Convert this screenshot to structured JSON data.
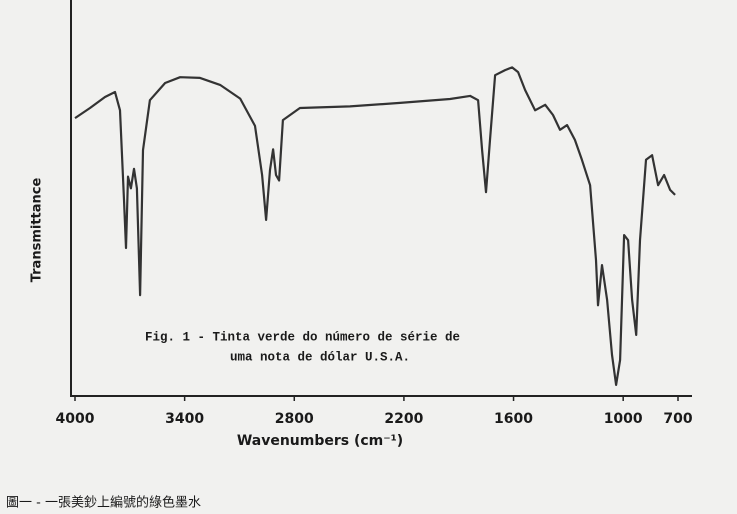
{
  "chart_data": {
    "type": "line",
    "annotation": [
      "Fig. 1 - Tinta verde do número de série de",
      "uma nota de dólar U.S.A."
    ],
    "x_label": "Wavenumbers (cm⁻¹)",
    "y_label": "Transmittance",
    "caption": "圖一 - 一張美鈔上編號的綠色墨水",
    "xlim": [
      4000,
      700
    ],
    "xticks": [
      4000,
      3400,
      2800,
      2200,
      1600,
      1000,
      700
    ],
    "ylim": [
      0,
      100
    ],
    "series": [
      {
        "color": "#333333",
        "x": [
          4000,
          3918,
          3836,
          3781,
          3754,
          3732,
          3721,
          3710,
          3694,
          3677,
          3661,
          3644,
          3628,
          3590,
          3507,
          3425,
          3316,
          3206,
          3096,
          3015,
          2976,
          2954,
          2933,
          2916,
          2900,
          2883,
          2862,
          2769,
          2495,
          2221,
          1948,
          1838,
          1794,
          1772,
          1751,
          1729,
          1701,
          1646,
          1608,
          1575,
          1537,
          1482,
          1427,
          1384,
          1346,
          1307,
          1264,
          1226,
          1181,
          1149,
          1138,
          1116,
          1088,
          1061,
          1039,
          1017,
          995,
          973,
          951,
          929,
          908,
          875,
          842,
          809,
          776,
          743,
          716
        ],
        "values": [
          71,
          73.6,
          76.4,
          77.7,
          73,
          50,
          37.7,
          56,
          53,
          58,
          53,
          25.6,
          62.8,
          75.6,
          80,
          81.5,
          81.3,
          79.5,
          76,
          69,
          56.4,
          44.9,
          57.7,
          63,
          56.4,
          55,
          70.5,
          73.6,
          74,
          74.9,
          75.9,
          76.7,
          75.6,
          62.8,
          52,
          65.4,
          82,
          83.3,
          84,
          82.8,
          78.2,
          73,
          74.4,
          71.8,
          68,
          69.2,
          65.4,
          60.3,
          53.8,
          34.6,
          23,
          33.3,
          24.4,
          10.3,
          2.6,
          9,
          41,
          39.7,
          24.4,
          15.4,
          39.7,
          60.3,
          61.5,
          53.8,
          56.4,
          52.6,
          51.3
        ]
      }
    ]
  }
}
